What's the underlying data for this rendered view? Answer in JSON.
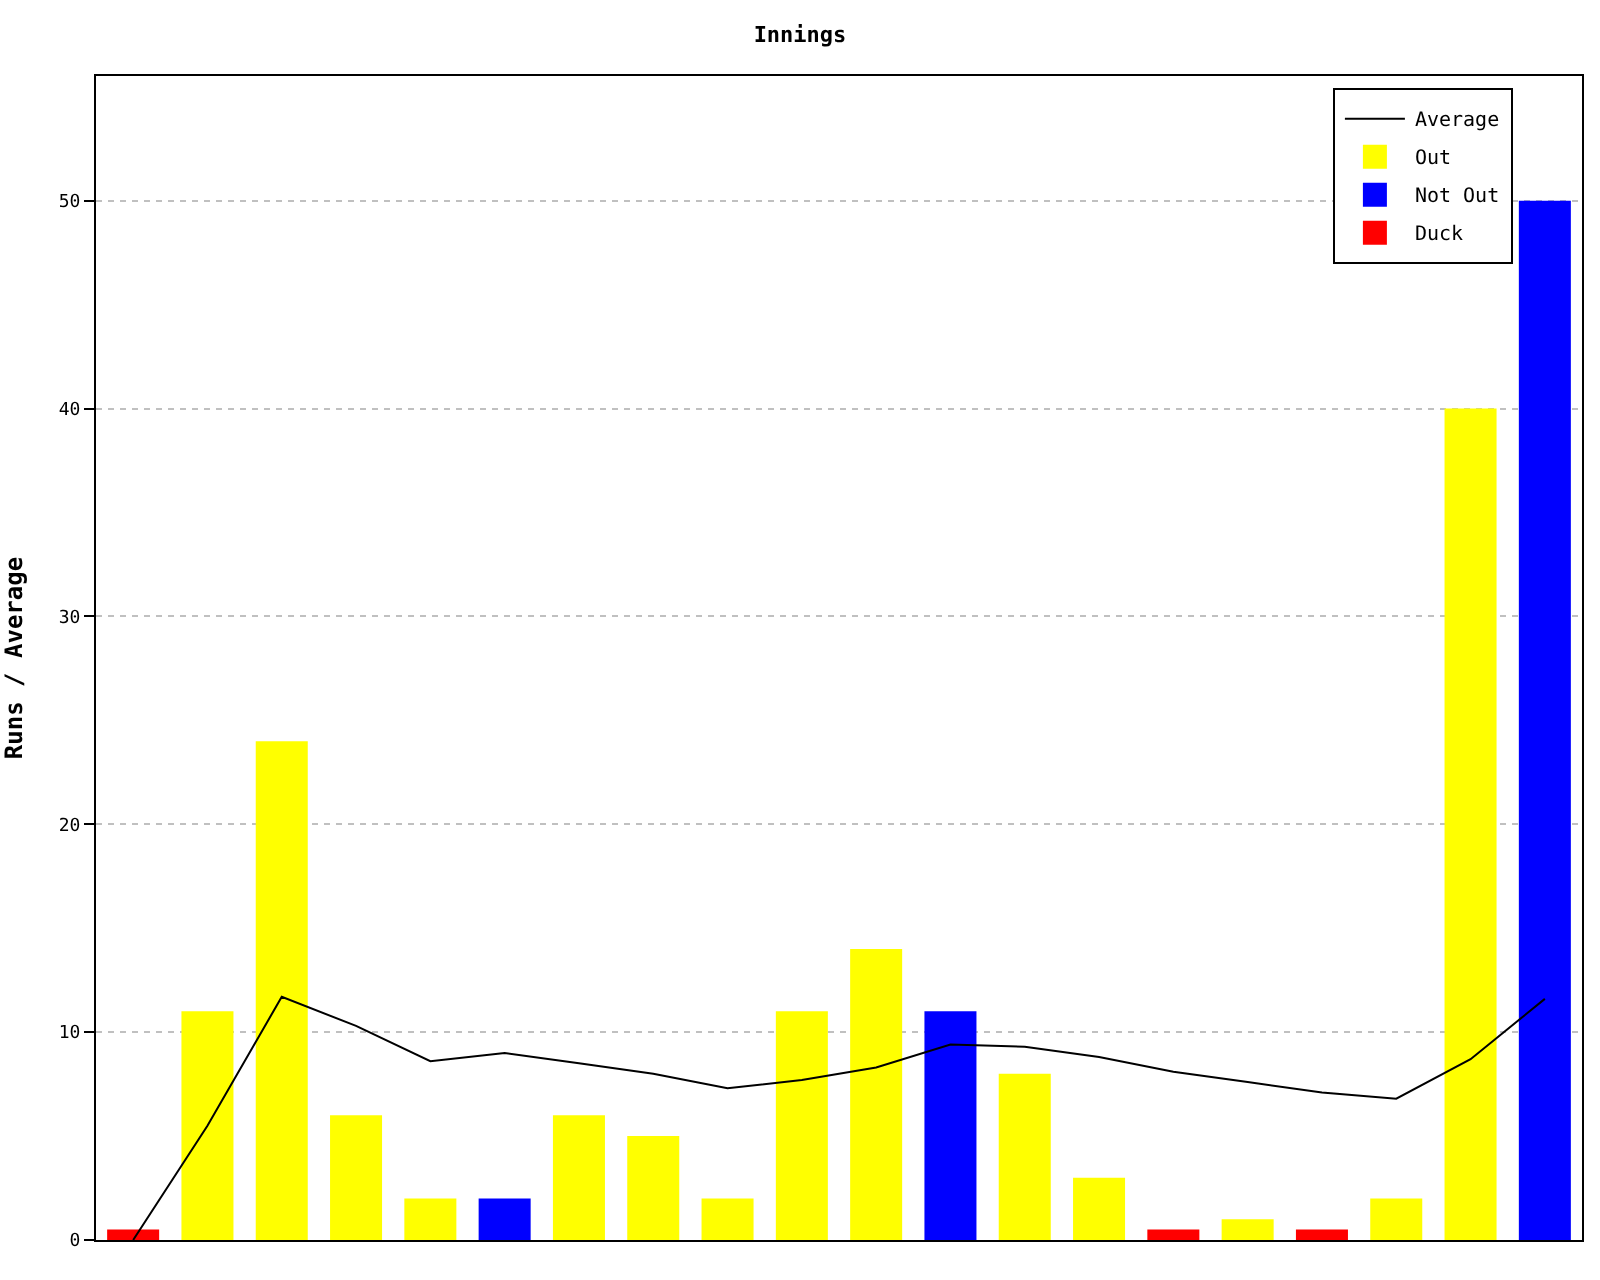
{
  "chart_data": {
    "type": "bar",
    "title": "Innings",
    "ylabel": "Runs / Average",
    "categories": [
      null,
      null,
      null,
      null,
      null,
      null,
      null,
      null,
      null,
      null,
      null,
      null,
      null,
      null,
      null,
      null,
      null,
      null,
      null,
      null
    ],
    "series": [
      {
        "name": "Average",
        "type": "line",
        "color": "#000000",
        "values": [
          0,
          5.5,
          11.7,
          10.3,
          8.6,
          9.0,
          8.5,
          8.0,
          7.3,
          7.7,
          8.3,
          9.4,
          9.3,
          8.8,
          8.1,
          7.6,
          7.1,
          6.8,
          8.7,
          11.6
        ]
      },
      {
        "name": "Out",
        "color": "#ffff00",
        "values": [
          null,
          11,
          24,
          6,
          2,
          null,
          6,
          5,
          2,
          11,
          14,
          null,
          8,
          3,
          null,
          1,
          null,
          2,
          40,
          null
        ]
      },
      {
        "name": "Not Out",
        "color": "#0000ff",
        "values": [
          null,
          null,
          null,
          null,
          null,
          2,
          null,
          null,
          null,
          null,
          null,
          11,
          null,
          null,
          null,
          null,
          null,
          null,
          null,
          50
        ]
      },
      {
        "name": "Duck",
        "color": "#ff0000",
        "values": [
          0.5,
          null,
          null,
          null,
          null,
          null,
          null,
          null,
          null,
          null,
          null,
          null,
          null,
          null,
          0.5,
          null,
          0.5,
          null,
          null,
          null
        ]
      }
    ],
    "ylim": [
      0,
      56
    ],
    "yticks": [
      0,
      10,
      20,
      30,
      40,
      50
    ],
    "grid": "y",
    "legend": "top right",
    "marker": "none",
    "line_style": "solid"
  }
}
